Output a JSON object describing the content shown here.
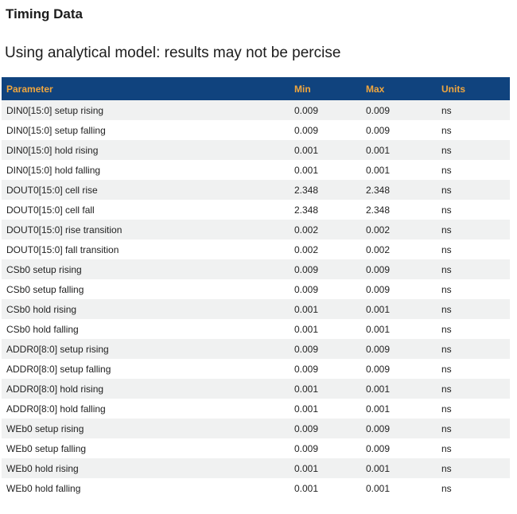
{
  "page": {
    "title": "Timing Data",
    "subtitle": "Using analytical model: results may not be percise"
  },
  "colors": {
    "header_bg": "#10437e",
    "header_text": "#f0a63e",
    "stripe_bg": "#f0f1f1",
    "text": "#222222"
  },
  "table": {
    "columns": {
      "parameter": "Parameter",
      "min": "Min",
      "max": "Max",
      "units": "Units"
    },
    "rows": [
      {
        "parameter": "DIN0[15:0] setup rising",
        "min": "0.009",
        "max": "0.009",
        "units": "ns"
      },
      {
        "parameter": "DIN0[15:0] setup falling",
        "min": "0.009",
        "max": "0.009",
        "units": "ns"
      },
      {
        "parameter": "DIN0[15:0] hold rising",
        "min": "0.001",
        "max": "0.001",
        "units": "ns"
      },
      {
        "parameter": "DIN0[15:0] hold falling",
        "min": "0.001",
        "max": "0.001",
        "units": "ns"
      },
      {
        "parameter": "DOUT0[15:0] cell rise",
        "min": "2.348",
        "max": "2.348",
        "units": "ns"
      },
      {
        "parameter": "DOUT0[15:0] cell fall",
        "min": "2.348",
        "max": "2.348",
        "units": "ns"
      },
      {
        "parameter": "DOUT0[15:0] rise transition",
        "min": "0.002",
        "max": "0.002",
        "units": "ns"
      },
      {
        "parameter": "DOUT0[15:0] fall transition",
        "min": "0.002",
        "max": "0.002",
        "units": "ns"
      },
      {
        "parameter": "CSb0 setup rising",
        "min": "0.009",
        "max": "0.009",
        "units": "ns"
      },
      {
        "parameter": "CSb0 setup falling",
        "min": "0.009",
        "max": "0.009",
        "units": "ns"
      },
      {
        "parameter": "CSb0 hold rising",
        "min": "0.001",
        "max": "0.001",
        "units": "ns"
      },
      {
        "parameter": "CSb0 hold falling",
        "min": "0.001",
        "max": "0.001",
        "units": "ns"
      },
      {
        "parameter": "ADDR0[8:0] setup rising",
        "min": "0.009",
        "max": "0.009",
        "units": "ns"
      },
      {
        "parameter": "ADDR0[8:0] setup falling",
        "min": "0.009",
        "max": "0.009",
        "units": "ns"
      },
      {
        "parameter": "ADDR0[8:0] hold rising",
        "min": "0.001",
        "max": "0.001",
        "units": "ns"
      },
      {
        "parameter": "ADDR0[8:0] hold falling",
        "min": "0.001",
        "max": "0.001",
        "units": "ns"
      },
      {
        "parameter": "WEb0 setup rising",
        "min": "0.009",
        "max": "0.009",
        "units": "ns"
      },
      {
        "parameter": "WEb0 setup falling",
        "min": "0.009",
        "max": "0.009",
        "units": "ns"
      },
      {
        "parameter": "WEb0 hold rising",
        "min": "0.001",
        "max": "0.001",
        "units": "ns"
      },
      {
        "parameter": "WEb0 hold falling",
        "min": "0.001",
        "max": "0.001",
        "units": "ns"
      }
    ]
  }
}
